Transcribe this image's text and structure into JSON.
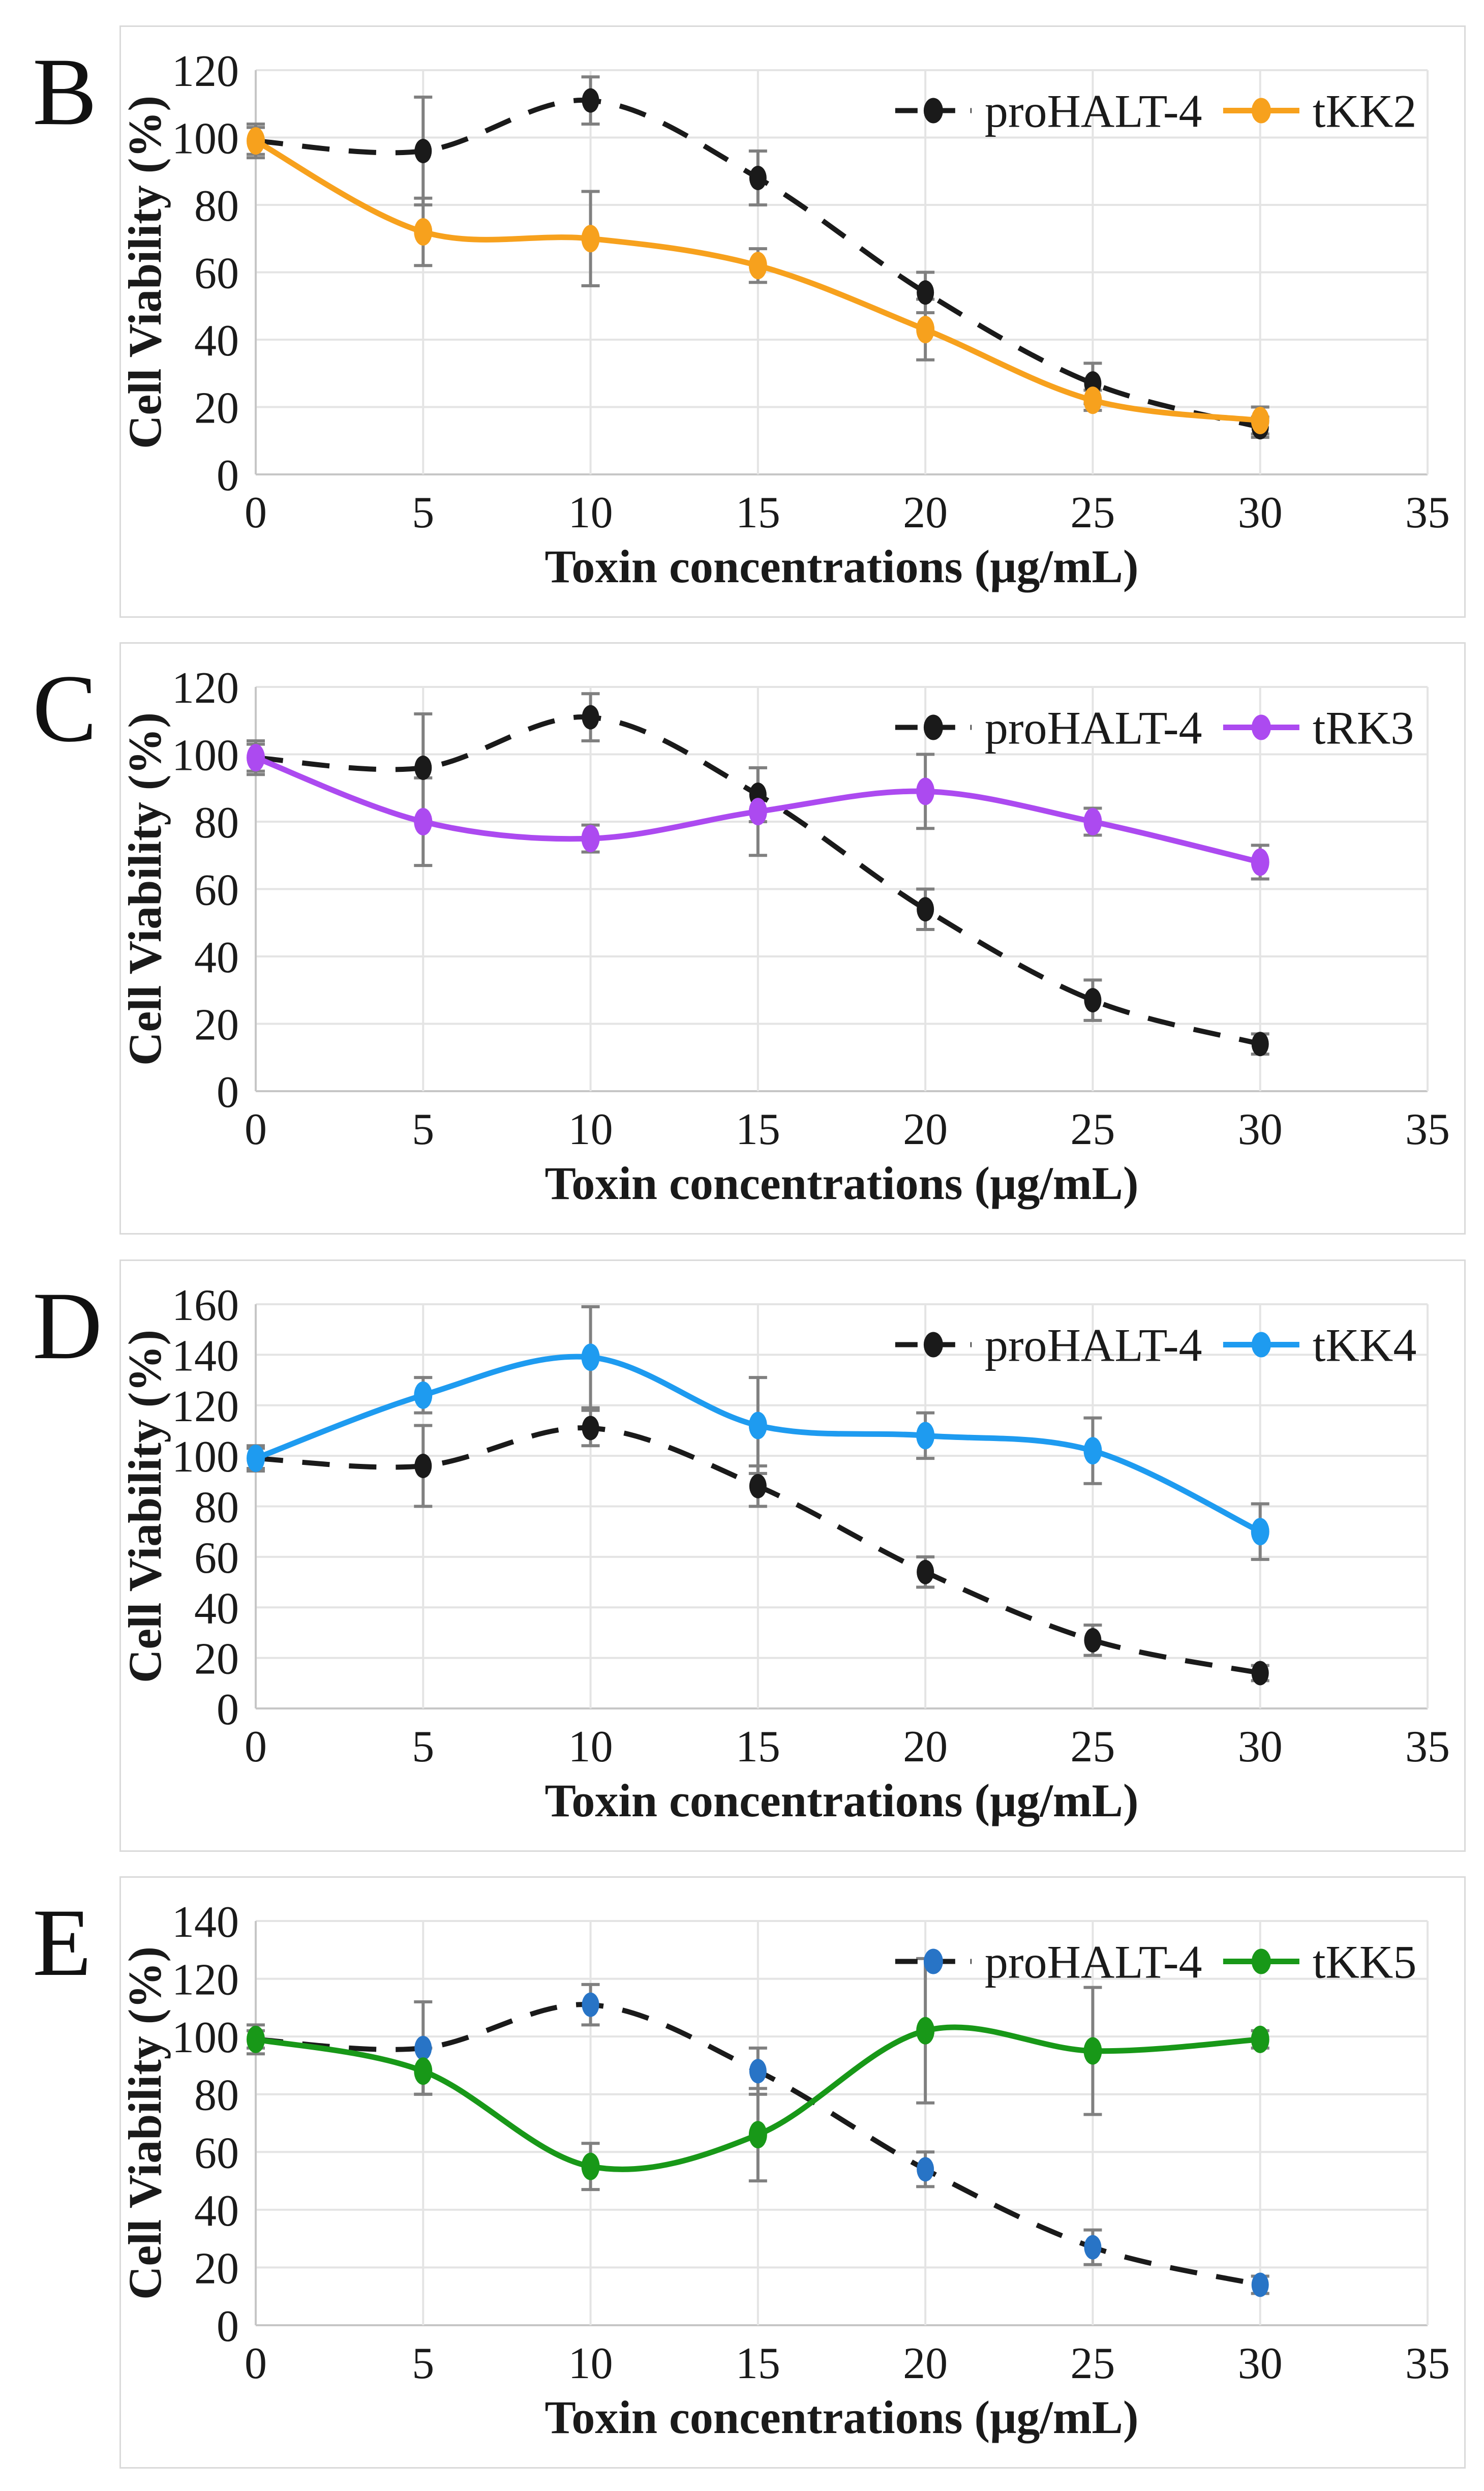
{
  "figure": {
    "background": "#ffffff",
    "panel_border_color": "#dadada",
    "gridline_color": "#e4e4e4",
    "axis_line_color": "#c6c6c6",
    "error_bar_color": "#808080",
    "x_axis_label": "Toxin concentrations (μg/mL)",
    "y_axis_label": "Cell Viability (%)"
  },
  "chart_data": [
    {
      "panel_label": "B",
      "type": "line",
      "title": "",
      "xlabel": "Toxin concentrations (μg/mL)",
      "ylabel": "Cell Viability (%)",
      "x": [
        0,
        5,
        10,
        15,
        20,
        25,
        30
      ],
      "x_ticks": [
        0,
        5,
        10,
        15,
        20,
        25,
        30,
        35
      ],
      "y_ticks": [
        0,
        20,
        40,
        60,
        80,
        100,
        120
      ],
      "xlim": [
        0,
        35
      ],
      "ylim": [
        0,
        120
      ],
      "grid": true,
      "legend_position": "top-right",
      "series": [
        {
          "name": "proHALT-4",
          "line_style": "dashed",
          "color": "#1a1a1a",
          "marker_color": "#1a1a1a",
          "values": [
            99,
            96,
            111,
            88,
            54,
            27,
            14
          ],
          "errors": [
            5,
            16,
            7,
            8,
            6,
            6,
            3
          ]
        },
        {
          "name": "tKK2",
          "line_style": "solid",
          "color": "#f7a11d",
          "marker_color": "#f7a11d",
          "values": [
            99,
            72,
            70,
            62,
            43,
            22,
            16
          ],
          "errors": [
            4,
            10,
            14,
            5,
            9,
            3,
            4
          ]
        }
      ]
    },
    {
      "panel_label": "C",
      "type": "line",
      "title": "",
      "xlabel": "Toxin concentrations (μg/mL)",
      "ylabel": "Cell Viability (%)",
      "x": [
        0,
        5,
        10,
        15,
        20,
        25,
        30
      ],
      "x_ticks": [
        0,
        5,
        10,
        15,
        20,
        25,
        30,
        35
      ],
      "y_ticks": [
        0,
        20,
        40,
        60,
        80,
        100,
        120
      ],
      "xlim": [
        0,
        35
      ],
      "ylim": [
        0,
        120
      ],
      "grid": true,
      "legend_position": "top-right",
      "series": [
        {
          "name": "proHALT-4",
          "line_style": "dashed",
          "color": "#1a1a1a",
          "marker_color": "#1a1a1a",
          "values": [
            99,
            96,
            111,
            88,
            54,
            27,
            14
          ],
          "errors": [
            5,
            16,
            7,
            8,
            6,
            6,
            3
          ]
        },
        {
          "name": "tRK3",
          "line_style": "solid",
          "color": "#ac4af0",
          "marker_color": "#ac4af0",
          "values": [
            99,
            80,
            75,
            83,
            89,
            80,
            68
          ],
          "errors": [
            4,
            13,
            4,
            13,
            11,
            4,
            5
          ]
        }
      ]
    },
    {
      "panel_label": "D",
      "type": "line",
      "title": "",
      "xlabel": "Toxin concentrations (μg/mL)",
      "ylabel": "Cell Viability (%)",
      "x": [
        0,
        5,
        10,
        15,
        20,
        25,
        30
      ],
      "x_ticks": [
        0,
        5,
        10,
        15,
        20,
        25,
        30,
        35
      ],
      "y_ticks": [
        0,
        20,
        40,
        60,
        80,
        100,
        120,
        140,
        160
      ],
      "xlim": [
        0,
        35
      ],
      "ylim": [
        0,
        160
      ],
      "grid": true,
      "legend_position": "top-right",
      "series": [
        {
          "name": "proHALT-4",
          "line_style": "dashed",
          "color": "#1a1a1a",
          "marker_color": "#1a1a1a",
          "values": [
            99,
            96,
            111,
            88,
            54,
            27,
            14
          ],
          "errors": [
            5,
            16,
            7,
            8,
            6,
            6,
            3
          ]
        },
        {
          "name": "tKK4",
          "line_style": "solid",
          "color": "#1e9bf0",
          "marker_color": "#1e9bf0",
          "values": [
            99,
            124,
            139,
            112,
            108,
            102,
            70
          ],
          "errors": [
            4,
            7,
            20,
            19,
            9,
            13,
            11
          ]
        }
      ]
    },
    {
      "panel_label": "E",
      "type": "line",
      "title": "",
      "xlabel": "Toxin concentrations (μg/mL)",
      "ylabel": "Cell Viability (%)",
      "x": [
        0,
        5,
        10,
        15,
        20,
        25,
        30
      ],
      "x_ticks": [
        0,
        5,
        10,
        15,
        20,
        25,
        30,
        35
      ],
      "y_ticks": [
        0,
        20,
        40,
        60,
        80,
        100,
        120,
        140
      ],
      "xlim": [
        0,
        35
      ],
      "ylim": [
        0,
        140
      ],
      "grid": true,
      "legend_position": "top-right",
      "series": [
        {
          "name": "proHALT-4",
          "line_style": "dashed",
          "color": "#1a1a1a",
          "marker_color": "#2874c6",
          "values": [
            99,
            96,
            111,
            88,
            54,
            27,
            14
          ],
          "errors": [
            5,
            16,
            7,
            8,
            6,
            6,
            3
          ]
        },
        {
          "name": "tKK5",
          "line_style": "solid",
          "color": "#189818",
          "marker_color": "#189818",
          "values": [
            99,
            88,
            55,
            66,
            102,
            95,
            99
          ],
          "errors": [
            3,
            8,
            8,
            16,
            25,
            22,
            3
          ]
        }
      ]
    }
  ]
}
